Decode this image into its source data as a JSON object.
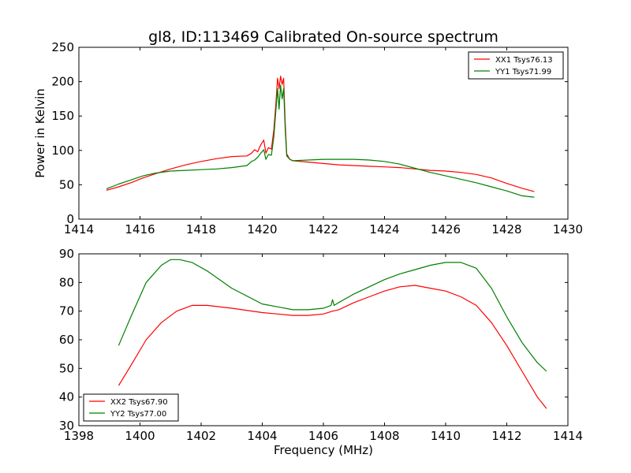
{
  "chart_data": [
    {
      "type": "line",
      "title": "gl8, ID:113469 Calibrated On-source spectrum",
      "xlabel": "",
      "ylabel": "Power in Kelvin",
      "xlim": [
        1414,
        1430
      ],
      "ylim": [
        0,
        250
      ],
      "xticks": [
        "1414",
        "1416",
        "1418",
        "1420",
        "1422",
        "1424",
        "1426",
        "1428",
        "1430"
      ],
      "yticks": [
        "0",
        "50",
        "100",
        "150",
        "200",
        "250"
      ],
      "legend_position": "top-right",
      "grid": false,
      "series": [
        {
          "name": "XX1 Tsys76.13",
          "color": "#ff0000",
          "x": [
            1414.9,
            1415.3,
            1415.7,
            1416.1,
            1416.5,
            1417.0,
            1417.5,
            1418.0,
            1418.5,
            1419.0,
            1419.5,
            1419.65,
            1419.75,
            1419.85,
            1419.95,
            1420.05,
            1420.12,
            1420.2,
            1420.3,
            1420.38,
            1420.45,
            1420.5,
            1420.55,
            1420.6,
            1420.65,
            1420.7,
            1420.75,
            1420.8,
            1420.9,
            1421.0,
            1421.5,
            1422.0,
            1422.5,
            1423.0,
            1423.5,
            1424.0,
            1424.5,
            1425.0,
            1425.5,
            1426.0,
            1426.5,
            1427.0,
            1427.5,
            1428.0,
            1428.5,
            1428.9
          ],
          "y": [
            42,
            47,
            53,
            60,
            66,
            73,
            79,
            84,
            88,
            91,
            92,
            96,
            101,
            98,
            108,
            115,
            96,
            104,
            102,
            130,
            170,
            205,
            190,
            208,
            196,
            205,
            140,
            95,
            87,
            85,
            83,
            81,
            79,
            78,
            77,
            76,
            75,
            73,
            71,
            70,
            68,
            65,
            60,
            52,
            45,
            40
          ]
        },
        {
          "name": "YY1 Tsys71.99",
          "color": "#008000",
          "x": [
            1414.9,
            1415.3,
            1415.7,
            1416.1,
            1416.5,
            1417.0,
            1417.5,
            1418.0,
            1418.5,
            1419.0,
            1419.5,
            1419.65,
            1419.75,
            1419.85,
            1419.95,
            1420.05,
            1420.12,
            1420.2,
            1420.3,
            1420.38,
            1420.45,
            1420.5,
            1420.55,
            1420.6,
            1420.65,
            1420.7,
            1420.75,
            1420.8,
            1420.9,
            1421.0,
            1421.5,
            1422.0,
            1422.5,
            1423.0,
            1423.5,
            1424.0,
            1424.5,
            1425.0,
            1425.5,
            1426.0,
            1426.5,
            1427.0,
            1427.5,
            1428.0,
            1428.5,
            1428.9
          ],
          "y": [
            44,
            51,
            57,
            63,
            67,
            70,
            71,
            72,
            73,
            75,
            78,
            84,
            86,
            90,
            96,
            101,
            87,
            94,
            93,
            120,
            160,
            190,
            160,
            195,
            175,
            190,
            130,
            92,
            87,
            85,
            86,
            87,
            87,
            87,
            86,
            84,
            80,
            74,
            68,
            63,
            58,
            53,
            47,
            41,
            34,
            32
          ]
        }
      ]
    },
    {
      "type": "line",
      "title": "",
      "xlabel": "Frequency (MHz)",
      "ylabel": "",
      "xlim": [
        1398,
        1414
      ],
      "ylim": [
        30,
        90
      ],
      "xticks": [
        "1398",
        "1400",
        "1402",
        "1404",
        "1406",
        "1408",
        "1410",
        "1412",
        "1414"
      ],
      "yticks": [
        "30",
        "40",
        "50",
        "60",
        "70",
        "80",
        "90"
      ],
      "legend_position": "bottom-left",
      "grid": false,
      "series": [
        {
          "name": "XX2 Tsys67.90",
          "color": "#ff0000",
          "x": [
            1399.3,
            1399.7,
            1400.2,
            1400.7,
            1401.2,
            1401.7,
            1402.2,
            1403.0,
            1404.0,
            1404.5,
            1405.0,
            1405.5,
            1406.0,
            1406.3,
            1406.5,
            1407.0,
            1407.5,
            1408.0,
            1408.5,
            1409.0,
            1409.5,
            1410.0,
            1410.5,
            1411.0,
            1411.5,
            1412.0,
            1412.5,
            1413.0,
            1413.3
          ],
          "y": [
            44,
            51,
            60,
            66,
            70,
            72,
            72,
            71,
            69.5,
            69,
            68.5,
            68.5,
            69,
            70,
            70.5,
            73,
            75,
            77,
            78.5,
            79,
            78,
            77,
            75,
            72,
            66,
            58,
            49,
            40,
            36
          ]
        },
        {
          "name": "YY2 Tsys77.00",
          "color": "#008000",
          "x": [
            1399.3,
            1399.7,
            1400.2,
            1400.7,
            1401.0,
            1401.3,
            1401.7,
            1402.2,
            1403.0,
            1404.0,
            1404.5,
            1405.0,
            1405.5,
            1406.0,
            1406.25,
            1406.3,
            1406.35,
            1406.5,
            1407.0,
            1407.5,
            1408.0,
            1408.5,
            1409.0,
            1409.5,
            1410.0,
            1410.5,
            1411.0,
            1411.5,
            1412.0,
            1412.5,
            1413.0,
            1413.3
          ],
          "y": [
            58,
            68,
            80,
            86,
            88,
            88,
            87,
            84,
            78,
            72.5,
            71.5,
            70.5,
            70.5,
            71,
            72,
            74,
            72,
            73,
            76,
            78.5,
            81,
            83,
            84.5,
            86,
            87,
            87,
            85,
            78,
            68,
            59,
            52,
            49
          ]
        }
      ]
    }
  ]
}
